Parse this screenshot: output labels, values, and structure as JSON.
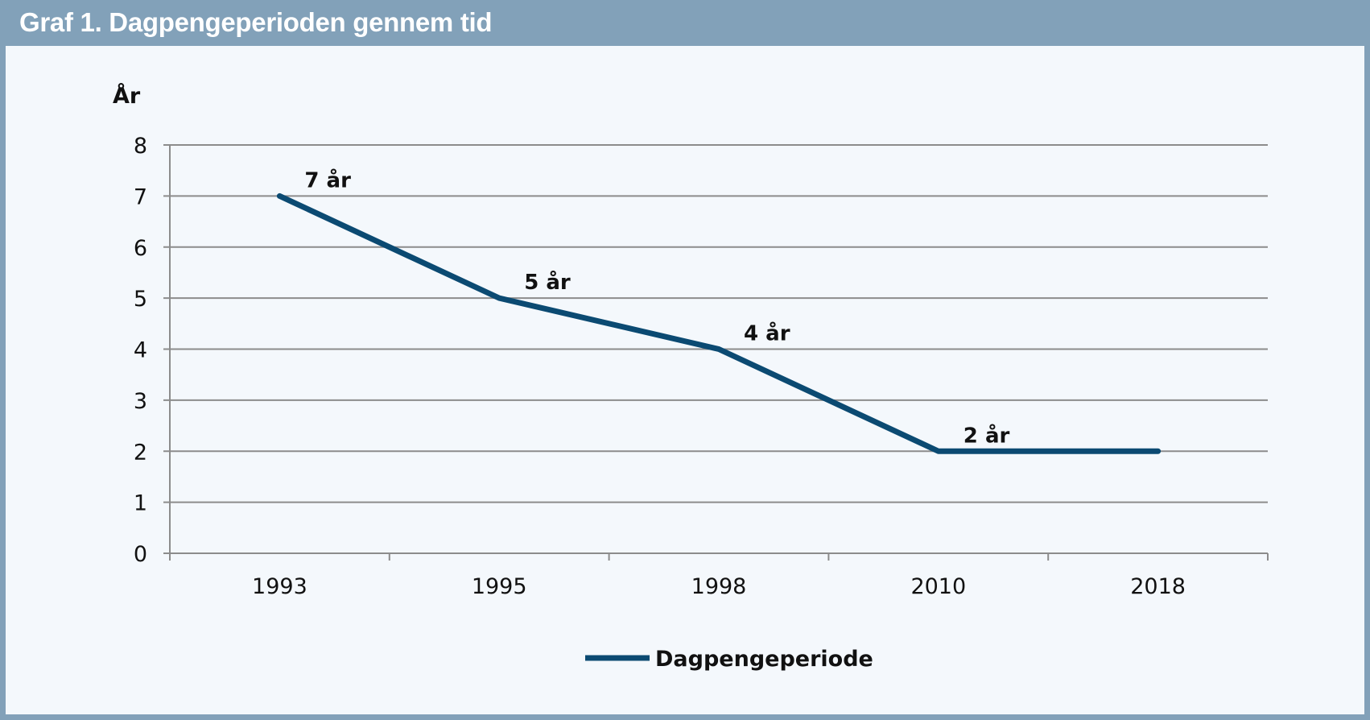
{
  "header": {
    "title": "Graf 1. Dagpengeperioden gennem tid"
  },
  "colors": {
    "header": "#82a1b9",
    "panel": "#f4f8fc",
    "line": "#0b4a72",
    "grid": "#8c8c8c"
  },
  "chart_data": {
    "type": "line",
    "title": "Graf 1. Dagpengeperioden gennem tid",
    "ylabel": "År",
    "xlabel": "",
    "categories": [
      "1993",
      "1995",
      "1998",
      "2010",
      "2018"
    ],
    "ylim": [
      0,
      8
    ],
    "yticks": [
      "0",
      "1",
      "2",
      "3",
      "4",
      "5",
      "6",
      "7",
      "8"
    ],
    "grid": true,
    "legend_position": "bottom",
    "series": [
      {
        "name": "Dagpengeperiode",
        "values": [
          7,
          5,
          4,
          2,
          2
        ],
        "data_labels": [
          "7 år",
          "5 år",
          "4 år",
          "2 år",
          ""
        ]
      }
    ]
  }
}
